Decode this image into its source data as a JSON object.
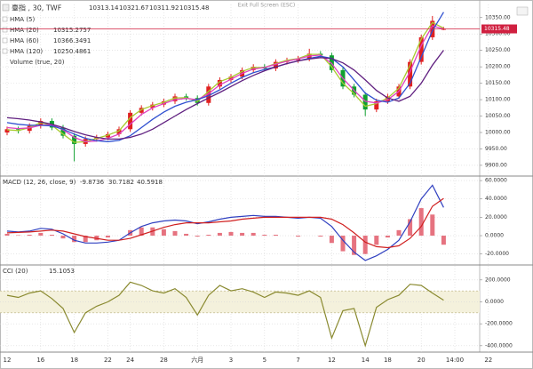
{
  "chart_data": [
    {
      "type": "candlestick",
      "title": "臺指 , 30, TWF",
      "annotations": [
        "Exit Full Screen (ESC)"
      ],
      "categories": [
        "12",
        null,
        null,
        "16",
        null,
        null,
        "18",
        null,
        null,
        "22",
        null,
        "24",
        null,
        null,
        "28",
        null,
        null,
        "六月",
        null,
        null,
        "3",
        null,
        null,
        "5",
        null,
        null,
        "7",
        null,
        null,
        "12",
        null,
        null,
        "14",
        null,
        "18",
        null,
        null,
        "20",
        null,
        null,
        "14:00",
        null,
        null,
        "22"
      ],
      "open": [
        10000,
        10010,
        10005,
        10020,
        10035,
        10015,
        9990,
        9965,
        9980,
        9985,
        9995,
        10010,
        10060,
        10075,
        10085,
        10095,
        10110,
        10105,
        10090,
        10140,
        10160,
        10170,
        10190,
        10200,
        10195,
        10215,
        10220,
        10225,
        10240,
        10235,
        10190,
        10140,
        10115,
        10070,
        10095,
        10110,
        10140,
        10215,
        10290,
        10313.14,
        null,
        null,
        null,
        null
      ],
      "high": [
        10018,
        10018,
        10028,
        10043,
        10043,
        10023,
        9998,
        9988,
        9993,
        10003,
        10018,
        10068,
        10083,
        10093,
        10103,
        10118,
        10118,
        10113,
        10148,
        10168,
        10178,
        10198,
        10208,
        10208,
        10223,
        10228,
        10233,
        10255,
        10248,
        10243,
        10198,
        10148,
        10123,
        10103,
        10118,
        10148,
        10223,
        10298,
        10355,
        10321.67,
        null,
        null,
        null,
        null
      ],
      "low": [
        9992,
        9997,
        9997,
        10012,
        10007,
        9982,
        9912,
        9957,
        9972,
        9977,
        9987,
        10002,
        10052,
        10067,
        10077,
        10087,
        10097,
        10082,
        10082,
        10132,
        10152,
        10162,
        10182,
        10187,
        10187,
        10207,
        10212,
        10217,
        10227,
        10182,
        10132,
        10107,
        10050,
        10062,
        10087,
        10102,
        10132,
        10207,
        10282,
        10311.92,
        null,
        null,
        null,
        null
      ],
      "close": [
        10010,
        10005,
        10020,
        10035,
        10015,
        9990,
        9965,
        9980,
        9985,
        9995,
        10010,
        10060,
        10075,
        10085,
        10095,
        10110,
        10105,
        10090,
        10140,
        10160,
        10170,
        10190,
        10200,
        10195,
        10215,
        10220,
        10225,
        10240,
        10235,
        10190,
        10140,
        10115,
        10070,
        10095,
        10110,
        10140,
        10215,
        10290,
        10340,
        10315.48,
        null,
        null,
        null,
        null
      ],
      "up_color": "#e02020",
      "down_color": "#10a030",
      "last_price_color": "#d02040",
      "series": [
        {
          "name": "HMA (5)",
          "color": "#a8cc30",
          "values": [
            10008,
            10006,
            10015,
            10030,
            10022,
            9995,
            9970,
            9972,
            9982,
            9992,
            10005,
            10045,
            10070,
            10082,
            10092,
            10105,
            10106,
            10095,
            10125,
            10155,
            10168,
            10186,
            10198,
            10198,
            10210,
            10220,
            10225,
            10238,
            10238,
            10200,
            10150,
            10118,
            10080,
            10088,
            10105,
            10135,
            10205,
            10285,
            10335,
            10318,
            null,
            null,
            null,
            null
          ]
        },
        {
          "name": "HMA (20)",
          "color": "#e040c0",
          "values": [
            10015,
            10012,
            10014,
            10022,
            10024,
            10008,
            9985,
            9972,
            9974,
            9982,
            9995,
            10025,
            10055,
            10075,
            10088,
            10100,
            10104,
            10100,
            10118,
            10145,
            10162,
            10180,
            10193,
            10198,
            10208,
            10217,
            10224,
            10233,
            10236,
            10210,
            10165,
            10128,
            10095,
            10090,
            10100,
            10125,
            10185,
            10265,
            10325,
            10315.2757,
            null,
            null,
            null,
            null
          ]
        },
        {
          "name": "HMA (60)",
          "color": "#3050d0",
          "values": [
            10030,
            10025,
            10022,
            10022,
            10020,
            10010,
            9995,
            9982,
            9975,
            9972,
            9976,
            9990,
            10015,
            10040,
            10062,
            10080,
            10092,
            10100,
            10112,
            10130,
            10150,
            10168,
            10182,
            10192,
            10200,
            10210,
            10218,
            10226,
            10232,
            10226,
            10200,
            10160,
            10120,
            10098,
            10092,
            10105,
            10150,
            10230,
            10310,
            10366.3491,
            null,
            null,
            null,
            null
          ]
        },
        {
          "name": "HMA (120)",
          "color": "#602080",
          "values": [
            10045,
            10042,
            10038,
            10032,
            10025,
            10015,
            10003,
            9993,
            9985,
            9980,
            9980,
            9985,
            9995,
            10010,
            10030,
            10050,
            10070,
            10088,
            10105,
            10122,
            10140,
            10158,
            10174,
            10188,
            10200,
            10210,
            10218,
            10224,
            10228,
            10225,
            10212,
            10190,
            10160,
            10128,
            10105,
            10095,
            10110,
            10150,
            10205,
            10250.4861,
            null,
            null,
            null,
            null
          ]
        }
      ],
      "legend_values": [
        false,
        true,
        true,
        true
      ],
      "legend_extra": [
        "Volume (true, 20)"
      ],
      "ylim": [
        9870,
        10390
      ],
      "yticks": [
        {
          "value": 9900,
          "label": "9900.00"
        },
        {
          "value": 9950,
          "label": "9950.00"
        },
        {
          "value": 10000,
          "label": "10000.00"
        },
        {
          "value": 10050,
          "label": "10050.00"
        },
        {
          "value": 10100,
          "label": "10100.00"
        },
        {
          "value": 10150,
          "label": "10150.00"
        },
        {
          "value": 10200,
          "label": "10200.00"
        },
        {
          "value": 10250,
          "label": "10250.00"
        },
        {
          "value": 10300,
          "label": "10300.00"
        },
        {
          "value": 10350,
          "label": "10350.00"
        }
      ],
      "grid": true
    },
    {
      "type": "line",
      "title": "MACD (12, 26, close, 9)",
      "series": [
        {
          "type": "bar",
          "color": "#e05060",
          "values": [
            2,
            0.5,
            1,
            3,
            1,
            -3,
            -7,
            -7,
            -5,
            -2,
            0,
            6,
            9,
            9,
            7,
            5,
            2,
            -1,
            1,
            3,
            4,
            3,
            3,
            1,
            1,
            0,
            -1,
            0,
            -1,
            -8,
            -17,
            -21,
            -20,
            -10,
            -2,
            6,
            18,
            30,
            23,
            -9.8736,
            null,
            null,
            null,
            null
          ]
        },
        {
          "type": "line",
          "color": "#3040c0",
          "values": [
            5,
            4,
            5,
            8,
            7,
            2,
            -5,
            -8,
            -8,
            -7,
            -5,
            3,
            10,
            14,
            16,
            17,
            16,
            13,
            15,
            18,
            20,
            21,
            22,
            21,
            21,
            20,
            19,
            20,
            19,
            10,
            -5,
            -18,
            -27,
            -22,
            -15,
            -5,
            15,
            40,
            55,
            30.7182,
            null,
            null,
            null,
            null
          ]
        },
        {
          "type": "line",
          "color": "#d02020",
          "values": [
            3,
            3.5,
            4,
            5,
            6,
            5,
            2,
            -1,
            -3,
            -5,
            -5,
            -3,
            1,
            5,
            9,
            12,
            14,
            14,
            14,
            15,
            16,
            18,
            19,
            20,
            20,
            20,
            20,
            20,
            20,
            18,
            12,
            3,
            -7,
            -12,
            -13,
            -11,
            -3,
            10,
            32,
            40.5918,
            null,
            null,
            null,
            null
          ]
        }
      ],
      "ylim": [
        -30,
        63
      ],
      "yticks": [
        {
          "value": -20,
          "label": "-20.0000"
        },
        {
          "value": 0,
          "label": "0.0000"
        },
        {
          "value": 20,
          "label": "20.0000"
        },
        {
          "value": 40,
          "label": "40.0000"
        },
        {
          "value": 60,
          "label": "60.0000"
        }
      ],
      "grid": true
    },
    {
      "type": "line",
      "title": "CCI (20)",
      "series": [
        {
          "type": "line",
          "color": "#8a8a30",
          "values": [
            60,
            40,
            80,
            100,
            30,
            -60,
            -280,
            -100,
            -40,
            0,
            60,
            180,
            150,
            100,
            80,
            120,
            40,
            -120,
            60,
            150,
            100,
            120,
            90,
            40,
            90,
            80,
            60,
            100,
            40,
            -330,
            -80,
            -60,
            -400,
            -50,
            20,
            60,
            160,
            150,
            80,
            15.1053,
            null,
            null,
            null,
            null
          ]
        }
      ],
      "band": [
        -100,
        100
      ],
      "band_color": "#f4f1dc",
      "ylim": [
        -450,
        320
      ],
      "yticks": [
        {
          "value": -400,
          "label": "-400.0000"
        },
        {
          "value": -200,
          "label": "-200.0000"
        },
        {
          "value": 0,
          "label": "0.0000"
        },
        {
          "value": 200,
          "label": "200.0000"
        }
      ],
      "grid": true
    }
  ]
}
